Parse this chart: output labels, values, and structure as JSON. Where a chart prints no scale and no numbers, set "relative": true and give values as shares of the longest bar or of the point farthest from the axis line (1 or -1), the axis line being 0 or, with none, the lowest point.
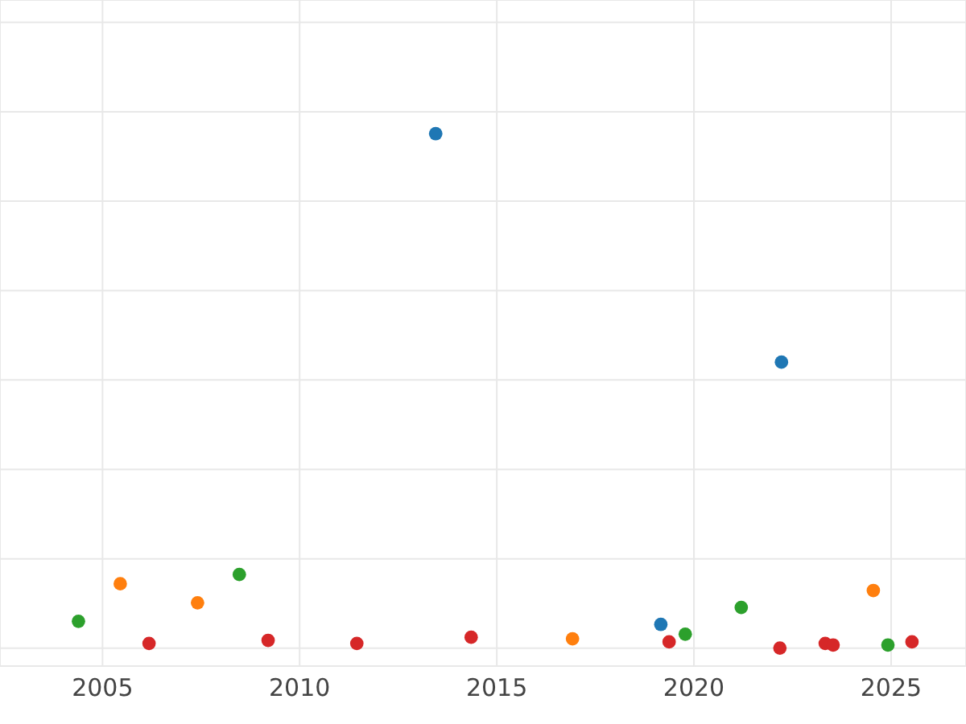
{
  "chart_data": {
    "type": "scatter",
    "relative": true,
    "xlim": [
      2002.4,
      2026.9
    ],
    "xticks": [
      2005,
      2010,
      2015,
      2020,
      2025
    ],
    "grid": true,
    "marker": "circle",
    "series": [
      {
        "color": "#1f77b4",
        "x": [
          2013.45,
          2022.22,
          2019.16
        ],
        "values": [
          1.0,
          0.556,
          0.046
        ]
      },
      {
        "color": "#ff7f0e",
        "x": [
          2005.45,
          2007.41,
          2016.92,
          2024.55
        ],
        "values": [
          0.125,
          0.088,
          0.018,
          0.112
        ]
      },
      {
        "color": "#2ca02c",
        "x": [
          2004.39,
          2008.47,
          2019.78,
          2021.2,
          2024.92
        ],
        "values": [
          0.052,
          0.143,
          0.027,
          0.079,
          0.006
        ]
      },
      {
        "color": "#d62728",
        "x": [
          2006.18,
          2009.2,
          2011.45,
          2014.35,
          2019.37,
          2022.18,
          2023.33,
          2023.53,
          2025.53
        ],
        "values": [
          0.009,
          0.015,
          0.009,
          0.021,
          0.012,
          0,
          0.009,
          0.006,
          0.012
        ]
      }
    ]
  }
}
